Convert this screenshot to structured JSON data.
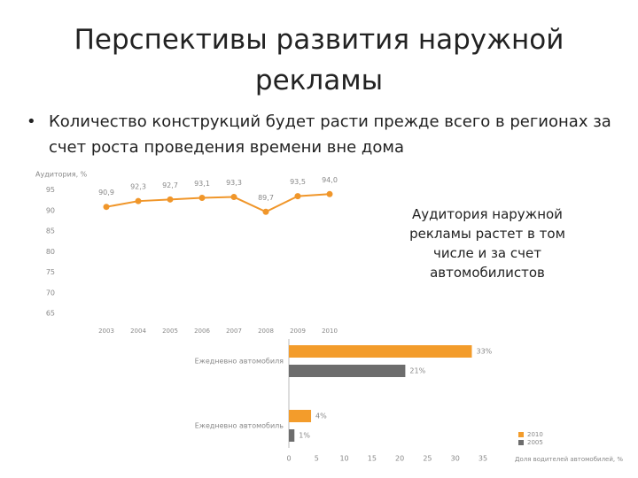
{
  "slide": {
    "title": "Перспективы развития наружной рекламы",
    "bullet": "Количество конструкций будет расти прежде всего в регионах за счет роста проведения времени вне дома",
    "callout": "Аудитория наружной рекламы растет в том числе и за счет автомобилистов"
  },
  "chart_data": [
    {
      "type": "line",
      "y_label": "Аудитория, %",
      "categories": [
        "2003",
        "2004",
        "2005",
        "2006",
        "2007",
        "2008",
        "2009",
        "2010"
      ],
      "values": [
        90.9,
        92.3,
        92.7,
        93.1,
        93.3,
        89.7,
        93.5,
        94.0
      ],
      "value_labels": [
        "90,9",
        "92,3",
        "92,7",
        "93,1",
        "93,3",
        "89,7",
        "93,5",
        "94,0"
      ],
      "color": "#f0962a",
      "ylim": [
        65,
        96
      ],
      "yticks": [
        65,
        70,
        75,
        80,
        85,
        90,
        95
      ]
    },
    {
      "type": "barh",
      "categories": [
        "Ежедневно автомобиля",
        "Ежедневно автомобиль"
      ],
      "series": [
        {
          "name": "2010",
          "color": "#f39c2b",
          "values": [
            33,
            4
          ],
          "value_labels": [
            "33%",
            "4%"
          ]
        },
        {
          "name": "2005",
          "color": "#6d6d6d",
          "values": [
            21,
            1
          ],
          "value_labels": [
            "21%",
            "1%"
          ]
        }
      ],
      "xlim": [
        0,
        35
      ],
      "xticks": [
        0,
        5,
        10,
        15,
        20,
        25,
        30,
        35
      ],
      "x_label": "Доля водителей автомобилей, %",
      "legend": "lower right"
    }
  ]
}
